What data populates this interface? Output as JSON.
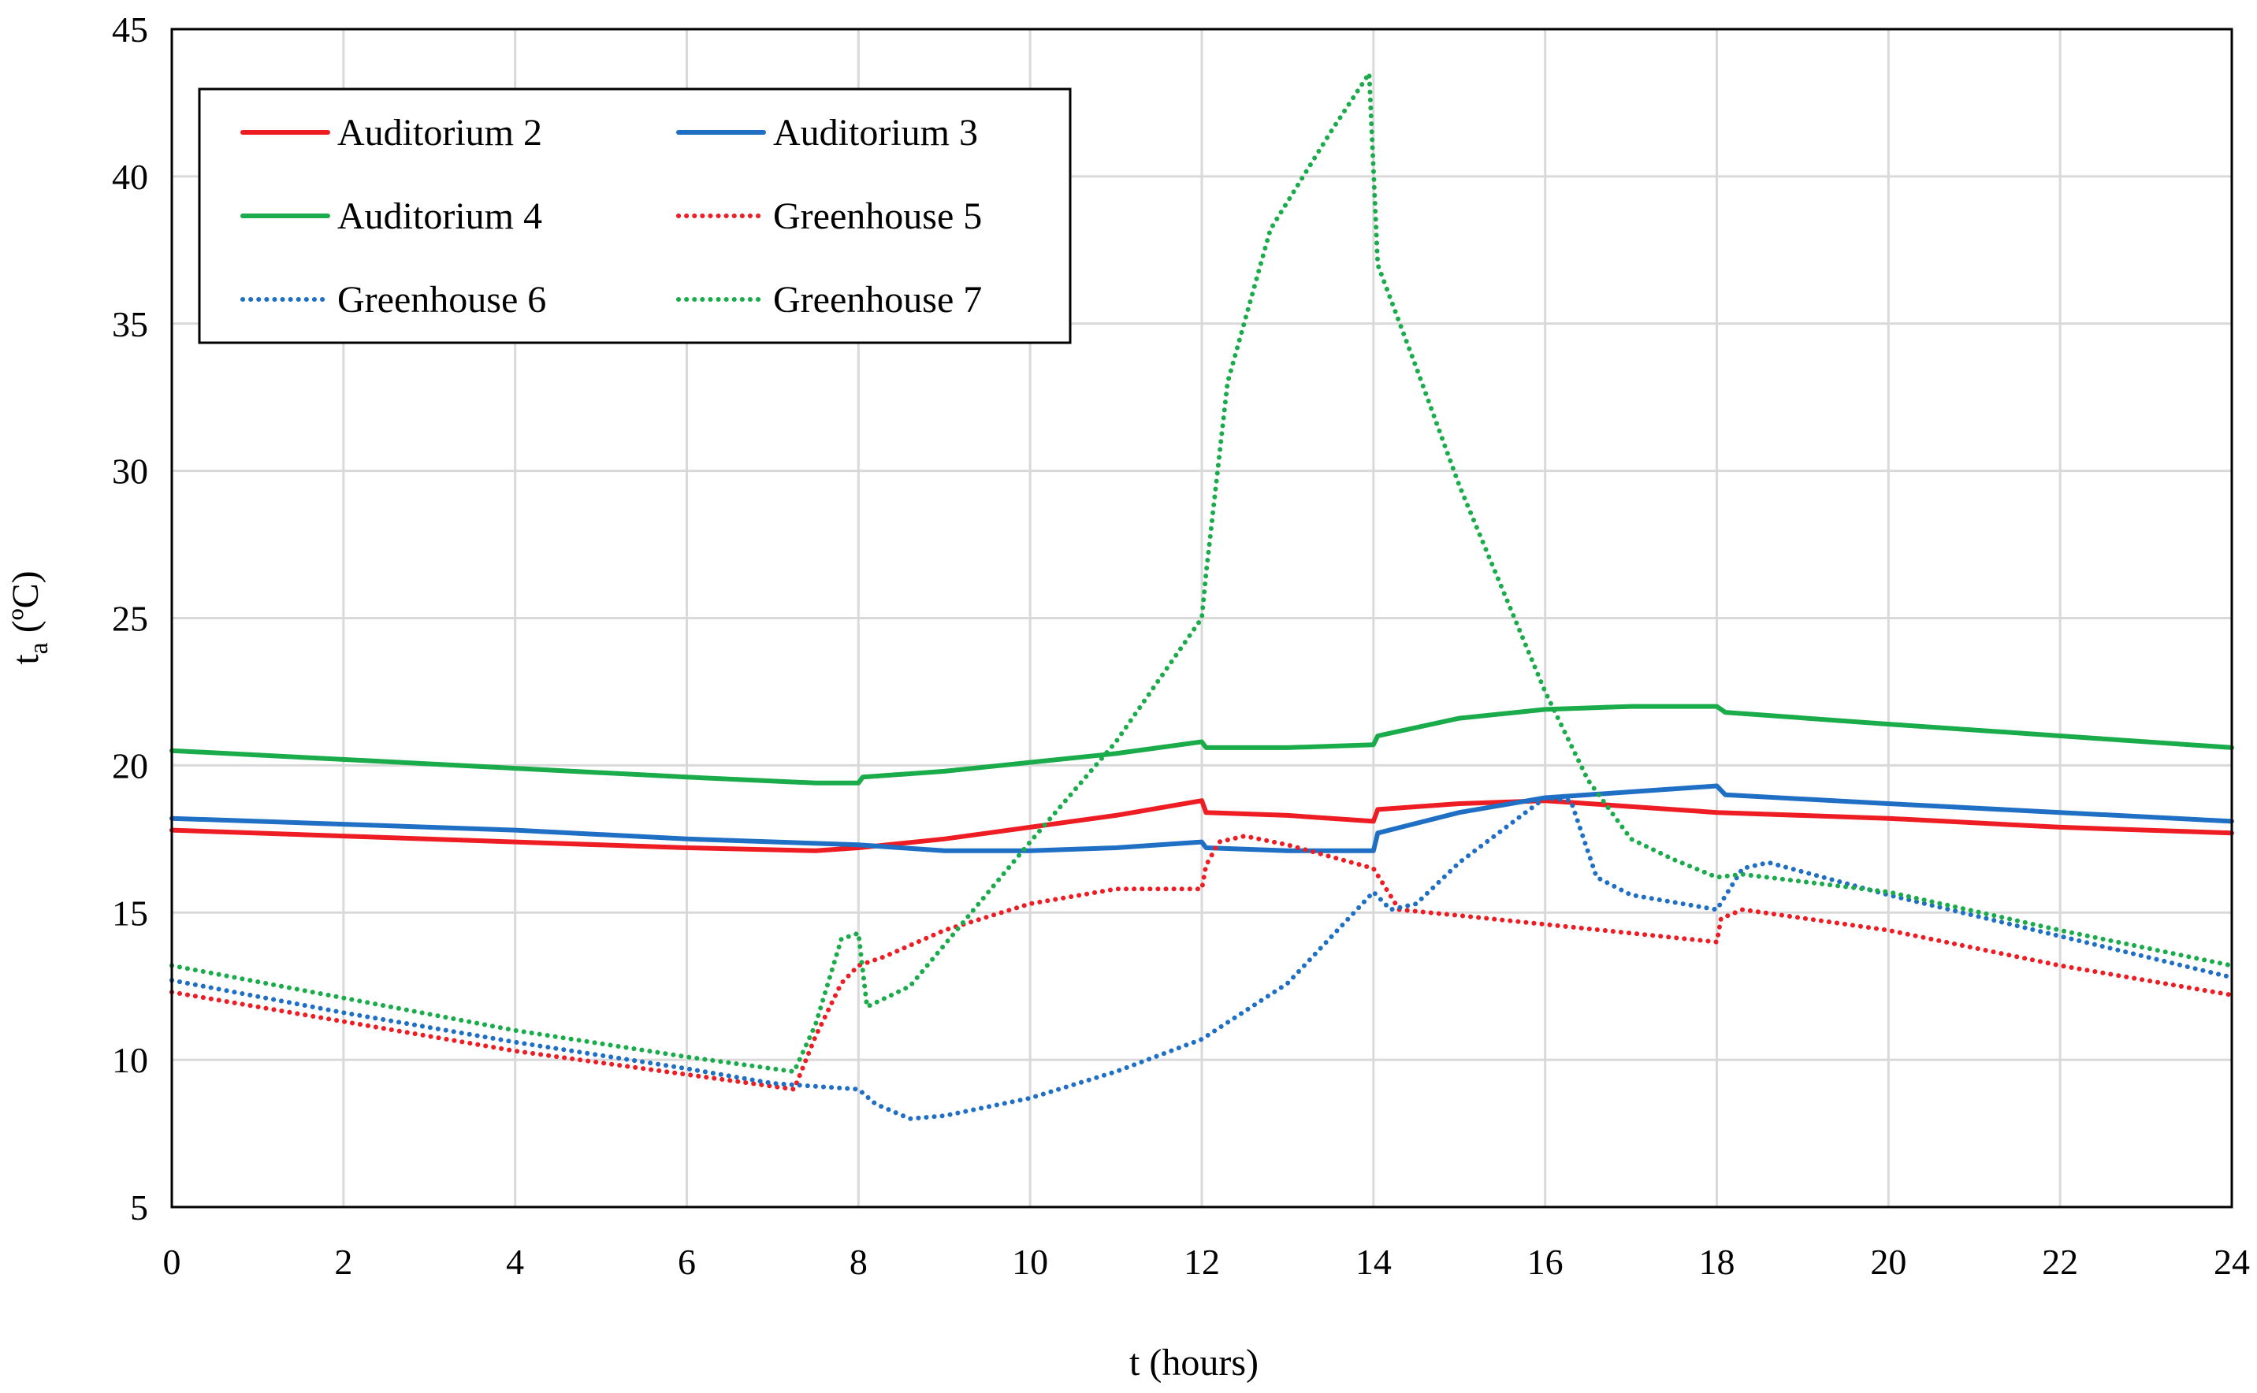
{
  "chart_data": {
    "type": "line",
    "title": "",
    "xlabel": "t (hours)",
    "ylabel_main": "t",
    "ylabel_sub": "a",
    "ylabel_unit": " (ºC)",
    "xlim": [
      0,
      24
    ],
    "ylim": [
      5,
      45
    ],
    "xticks": [
      0,
      2,
      4,
      6,
      8,
      10,
      12,
      14,
      16,
      18,
      20,
      22,
      24
    ],
    "yticks": [
      5,
      10,
      15,
      20,
      25,
      30,
      35,
      40,
      45
    ],
    "grid": true,
    "legend_position": "top-left",
    "series": [
      {
        "name": "Auditorium 2",
        "color": "#ee1c23",
        "style": "solid",
        "x": [
          0,
          2,
          4,
          6,
          7.5,
          8,
          9,
          10,
          11,
          12,
          12.05,
          13,
          14,
          14.05,
          15,
          16,
          17,
          18,
          20,
          22,
          24
        ],
        "y": [
          17.8,
          17.6,
          17.4,
          17.2,
          17.1,
          17.2,
          17.5,
          17.9,
          18.3,
          18.8,
          18.4,
          18.3,
          18.1,
          18.5,
          18.7,
          18.8,
          18.6,
          18.4,
          18.2,
          17.9,
          17.7
        ]
      },
      {
        "name": "Auditorium 3",
        "color": "#1f6fc5",
        "style": "solid",
        "x": [
          0,
          2,
          4,
          6,
          8,
          9,
          10,
          11,
          12,
          12.05,
          13,
          14,
          14.05,
          15,
          16,
          17,
          18,
          18.1,
          20,
          22,
          24
        ],
        "y": [
          18.2,
          18.0,
          17.8,
          17.5,
          17.3,
          17.1,
          17.1,
          17.2,
          17.4,
          17.2,
          17.1,
          17.1,
          17.7,
          18.4,
          18.9,
          19.1,
          19.3,
          19.0,
          18.7,
          18.4,
          18.1
        ]
      },
      {
        "name": "Auditorium 4",
        "color": "#1aab4a",
        "style": "solid",
        "x": [
          0,
          2,
          4,
          6,
          7.5,
          8,
          8.05,
          9,
          10,
          11,
          12,
          12.05,
          13,
          14,
          14.05,
          15,
          16,
          17,
          18,
          18.1,
          20,
          22,
          24
        ],
        "y": [
          20.5,
          20.2,
          19.9,
          19.6,
          19.4,
          19.4,
          19.6,
          19.8,
          20.1,
          20.4,
          20.8,
          20.6,
          20.6,
          20.7,
          21.0,
          21.6,
          21.9,
          22.0,
          22.0,
          21.8,
          21.4,
          21.0,
          20.6
        ]
      },
      {
        "name": "Greenhouse 5",
        "color": "#ee1c23",
        "style": "dotted",
        "x": [
          0,
          2,
          4,
          6,
          7.25,
          7.5,
          7.8,
          8,
          8.3,
          9,
          10,
          11,
          12,
          12.05,
          12.2,
          12.5,
          13,
          14,
          14.3,
          15,
          16,
          17,
          18,
          18.05,
          18.3,
          20,
          22,
          24
        ],
        "y": [
          12.3,
          11.3,
          10.3,
          9.5,
          9.0,
          10.8,
          12.6,
          13.2,
          13.5,
          14.4,
          15.3,
          15.8,
          15.8,
          16.6,
          17.4,
          17.6,
          17.3,
          16.5,
          15.1,
          14.9,
          14.6,
          14.3,
          14.0,
          14.8,
          15.1,
          14.4,
          13.2,
          12.2
        ]
      },
      {
        "name": "Greenhouse 6",
        "color": "#1f6fc5",
        "style": "dotted",
        "x": [
          0,
          2,
          4,
          6,
          7,
          7.5,
          8,
          8.2,
          8.6,
          9,
          10,
          11,
          12,
          13,
          14,
          14.2,
          14.5,
          15,
          16,
          16.3,
          16.6,
          17,
          18,
          18.3,
          18.6,
          20,
          22,
          24
        ],
        "y": [
          12.7,
          11.6,
          10.6,
          9.7,
          9.2,
          9.1,
          9.0,
          8.5,
          8.0,
          8.1,
          8.7,
          9.6,
          10.7,
          12.6,
          15.7,
          15.1,
          15.3,
          16.7,
          18.9,
          18.8,
          16.2,
          15.6,
          15.1,
          16.5,
          16.7,
          15.6,
          14.2,
          12.8
        ]
      },
      {
        "name": "Greenhouse 7",
        "color": "#1aab4a",
        "style": "dotted",
        "x": [
          0,
          2,
          4,
          6,
          7.25,
          7.5,
          7.8,
          8,
          8.1,
          8.6,
          9,
          10,
          11,
          12,
          12.05,
          12.3,
          12.8,
          13.5,
          13.95,
          14.05,
          14.5,
          15,
          15.5,
          16,
          16.5,
          17,
          17.5,
          18,
          18.3,
          20,
          22,
          24
        ],
        "y": [
          13.2,
          12.1,
          11.0,
          10.1,
          9.6,
          11.2,
          14.1,
          14.3,
          11.8,
          12.5,
          13.9,
          17.4,
          20.8,
          25.0,
          26.5,
          33.0,
          38.2,
          41.5,
          43.5,
          37.0,
          33.5,
          29.5,
          26.0,
          22.5,
          19.5,
          17.5,
          16.8,
          16.2,
          16.3,
          15.7,
          14.4,
          13.2
        ]
      }
    ]
  }
}
